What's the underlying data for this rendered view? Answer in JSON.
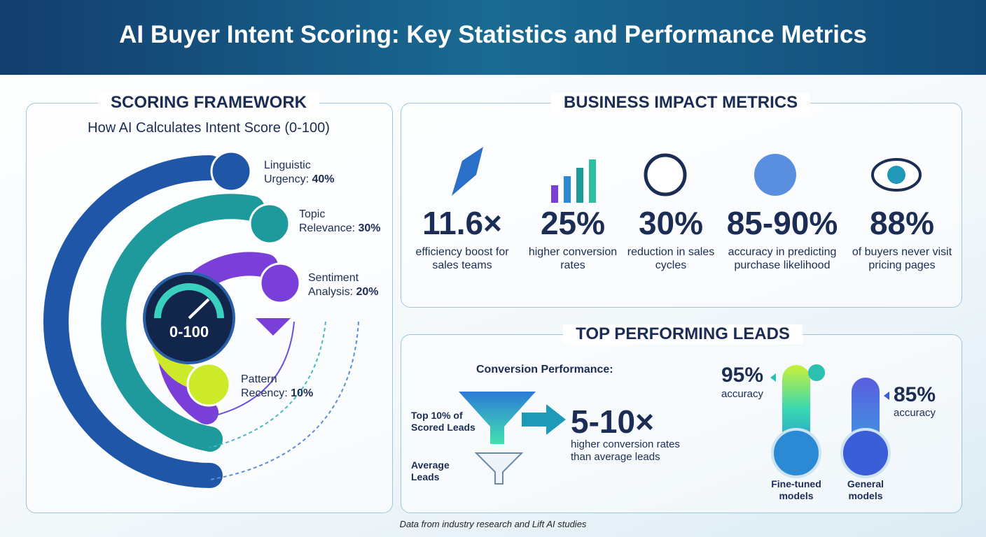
{
  "header": {
    "title": "AI Buyer Intent Scoring: Key Statistics and Performance Metrics"
  },
  "framework": {
    "heading": "SCORING FRAMEWORK",
    "subtitle": "How AI Calculates Intent Score (0-100)",
    "gauge_label": "0-100",
    "factors": [
      {
        "name": "Linguistic Urgency:",
        "weight": "40%"
      },
      {
        "name": "Topic Relevance:",
        "weight": "30%"
      },
      {
        "name": "Sentiment Analysis:",
        "weight": "20%"
      },
      {
        "name": "Pattern Recency:",
        "weight": "10%"
      }
    ]
  },
  "impact": {
    "heading": "BUSINESS IMPACT METRICS",
    "metrics": [
      {
        "value": "11.6×",
        "label": "efficiency boost for sales teams"
      },
      {
        "value": "25%",
        "label": "higher conversion rates"
      },
      {
        "value": "30%",
        "label": "reduction in sales cycles"
      },
      {
        "value": "85-90%",
        "label": "accuracy in predicting purchase likelihood"
      },
      {
        "value": "88%",
        "label": "of buyers never visit pricing pages"
      }
    ]
  },
  "leads": {
    "heading": "TOP PERFORMING LEADS",
    "conversion_title": "Conversion Performance:",
    "top_label": "Top 10% of Scored Leads",
    "average_label": "Average Leads",
    "multiplier": "5-10×",
    "multiplier_label": "higher conversion rates than average leads",
    "models": [
      {
        "accuracy": "95%",
        "accuracy_label": "accuracy",
        "name": "Fine-tuned models"
      },
      {
        "accuracy": "85%",
        "accuracy_label": "accuracy",
        "name": "General models"
      }
    ]
  },
  "footer": {
    "source": "Data from industry research and Lift AI studies"
  }
}
